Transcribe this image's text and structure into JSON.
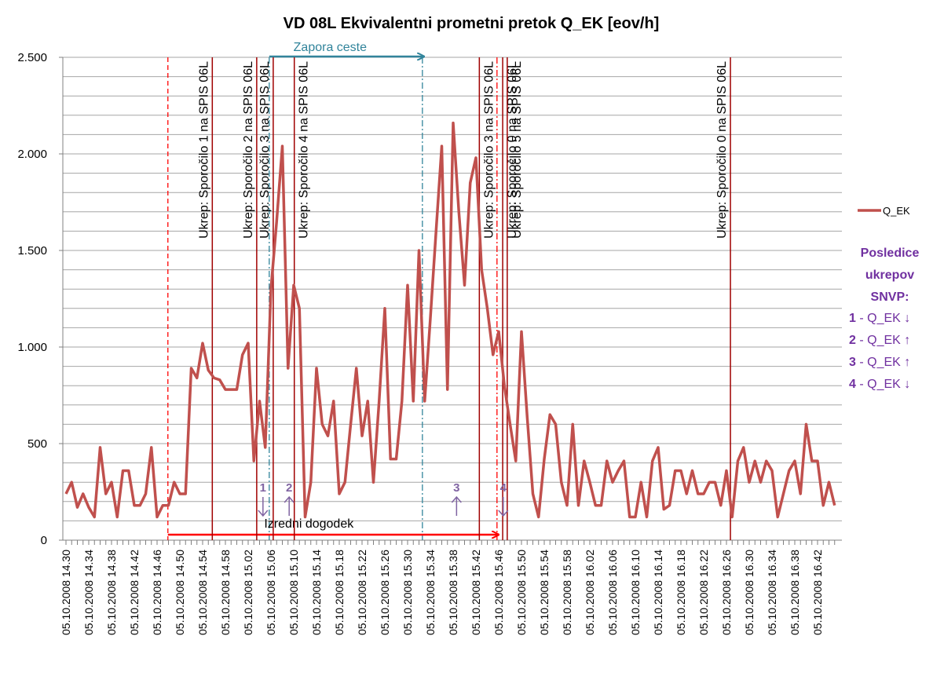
{
  "chart_data": {
    "type": "line",
    "title": "VD 08L Ekvivalentni prometni pretok Q_EK [eov/h]",
    "categories": [
      "05.10.2008 14.30",
      null,
      null,
      null,
      "05.10.2008 14.34",
      null,
      null,
      null,
      "05.10.2008 14.38",
      null,
      null,
      null,
      "05.10.2008 14.42",
      null,
      null,
      null,
      "05.10.2008 14.46",
      null,
      null,
      null,
      "05.10.2008 14.50",
      null,
      null,
      null,
      "05.10.2008 14.54",
      null,
      null,
      null,
      "05.10.2008 14.58",
      null,
      null,
      null,
      "05.10.2008 15.02",
      null,
      null,
      null,
      "05.10.2008 15.06",
      null,
      null,
      null,
      "05.10.2008 15.10",
      null,
      null,
      null,
      "05.10.2008 15.14",
      null,
      null,
      null,
      "05.10.2008 15.18",
      null,
      null,
      null,
      "05.10.2008 15.22",
      null,
      null,
      null,
      "05.10.2008 15.26",
      null,
      null,
      null,
      "05.10.2008 15.30",
      null,
      null,
      null,
      "05.10.2008 15.34",
      null,
      null,
      null,
      "05.10.2008 15.38",
      null,
      null,
      null,
      "05.10.2008 15.42",
      null,
      null,
      null,
      "05.10.2008 15.46",
      null,
      null,
      null,
      "05.10.2008 15.50",
      null,
      null,
      null,
      "05.10.2008 15.54",
      null,
      null,
      null,
      "05.10.2008 15.58",
      null,
      null,
      null,
      "05.10.2008 16.02",
      null,
      null,
      null,
      "05.10.2008 16.06",
      null,
      null,
      null,
      "05.10.2008 16.10",
      null,
      null,
      null,
      "05.10.2008 16.14",
      null,
      null,
      null,
      "05.10.2008 16.18",
      null,
      null,
      null,
      "05.10.2008 16.22",
      null,
      null,
      null,
      "05.10.2008 16.26",
      null,
      null,
      null,
      "05.10.2008 16.30",
      null,
      null,
      null,
      "05.10.2008 16.34",
      null,
      null,
      null,
      "05.10.2008 16.38",
      null,
      null,
      null,
      "05.10.2008 16.42",
      null,
      null,
      null
    ],
    "series": [
      {
        "name": "Q_EK",
        "color": "#c0504d",
        "values": [
          240,
          300,
          170,
          240,
          170,
          120,
          480,
          240,
          300,
          120,
          360,
          360,
          180,
          180,
          240,
          480,
          120,
          180,
          180,
          300,
          240,
          240,
          890,
          840,
          1020,
          880,
          840,
          830,
          780,
          780,
          780,
          960,
          1020,
          410,
          720,
          480,
          1300,
          1650,
          2040,
          890,
          1320,
          1200,
          120,
          300,
          890,
          600,
          540,
          720,
          240,
          300,
          600,
          890,
          540,
          720,
          300,
          720,
          1200,
          420,
          420,
          720,
          1320,
          720,
          1500,
          720,
          1150,
          1600,
          2040,
          780,
          2160,
          1700,
          1320,
          1850,
          1980,
          1400,
          1200,
          960,
          1080,
          800,
          600,
          410,
          1080,
          640,
          240,
          120,
          420,
          650,
          600,
          300,
          180,
          600,
          180,
          410,
          300,
          180,
          180,
          410,
          300,
          360,
          410,
          120,
          120,
          300,
          120,
          410,
          480,
          160,
          180,
          360,
          360,
          240,
          360,
          240,
          240,
          300,
          300,
          180,
          360,
          120,
          410,
          480,
          300,
          410,
          300,
          410,
          360,
          120,
          240,
          360,
          410,
          240,
          600,
          410,
          410,
          180,
          300,
          180
        ]
      }
    ],
    "ylim": [
      0,
      2500
    ],
    "yticks": [
      0,
      500,
      {
        "value": 1000,
        "label": "1.000"
      },
      {
        "value": 1500,
        "label": "1.500"
      },
      {
        "value": 2000,
        "label": "2.000"
      },
      {
        "value": 2500,
        "label": "2.500"
      }
    ],
    "ygrid": [
      100,
      200,
      300,
      400,
      500,
      600,
      700,
      800,
      900,
      1000,
      1100,
      1200,
      1300,
      1400,
      1500,
      1600,
      1700,
      1800,
      1900,
      2000,
      2100,
      2200,
      2300,
      2400,
      2500
    ],
    "grid": true,
    "legend": "right",
    "events": [
      {
        "x": 25.7,
        "label": "Ukrep: Sporočilo 1 na SPIS 06L",
        "side": "left"
      },
      {
        "x": 33.5,
        "label": "Ukrep: Sporočilo 2 na SPIS 06L",
        "side": "left"
      },
      {
        "x": 36.4,
        "label": "Ukrep: Sporočilo 3 na SPIS 06L",
        "side": "left"
      },
      {
        "x": 40.1,
        "label": "Ukrep: Sporočilo 4 na SPIS 06L",
        "side": "right"
      },
      {
        "x": 72.6,
        "label": "Ukrep: Sporočilo 3 na SPIS 06L",
        "side": "right"
      },
      {
        "x": 76.7,
        "label": "Ukrep: Sporočilo 0 na SPIS 06L",
        "side": "right"
      },
      {
        "x": 77.5,
        "label": "Ukrep: Sporočilo 5 na SPIS 06L",
        "side": "right"
      },
      {
        "x": 116.7,
        "label": "Ukrep: Sporočilo 0 na SPIS 06L",
        "side": "left"
      }
    ],
    "ranges": [
      {
        "label": "Zapora ceste",
        "from": 35.7,
        "to": 62.6,
        "color": "#31849b",
        "position": "top"
      },
      {
        "label": "Izredni dogodek",
        "from": 17.9,
        "to": 75.7,
        "color": "#ff0000",
        "position": "bottom"
      }
    ],
    "markers": [
      {
        "label": "1",
        "x": 34.6,
        "direction": "down"
      },
      {
        "label": "2",
        "x": 39.2,
        "direction": "up"
      },
      {
        "label": "3",
        "x": 68.6,
        "direction": "up"
      },
      {
        "label": "4",
        "x": 76.8,
        "direction": "down"
      }
    ],
    "note": {
      "lines": [
        "Posledice",
        "ukrepov",
        "SNVP:"
      ],
      "items": [
        {
          "num": "1",
          "text": " - Q_EK ↓"
        },
        {
          "num": "2",
          "text": " - Q_EK ↑"
        },
        {
          "num": "3",
          "text": " - Q_EK ↑"
        },
        {
          "num": "4",
          "text": " - Q_EK ↓"
        }
      ]
    }
  }
}
